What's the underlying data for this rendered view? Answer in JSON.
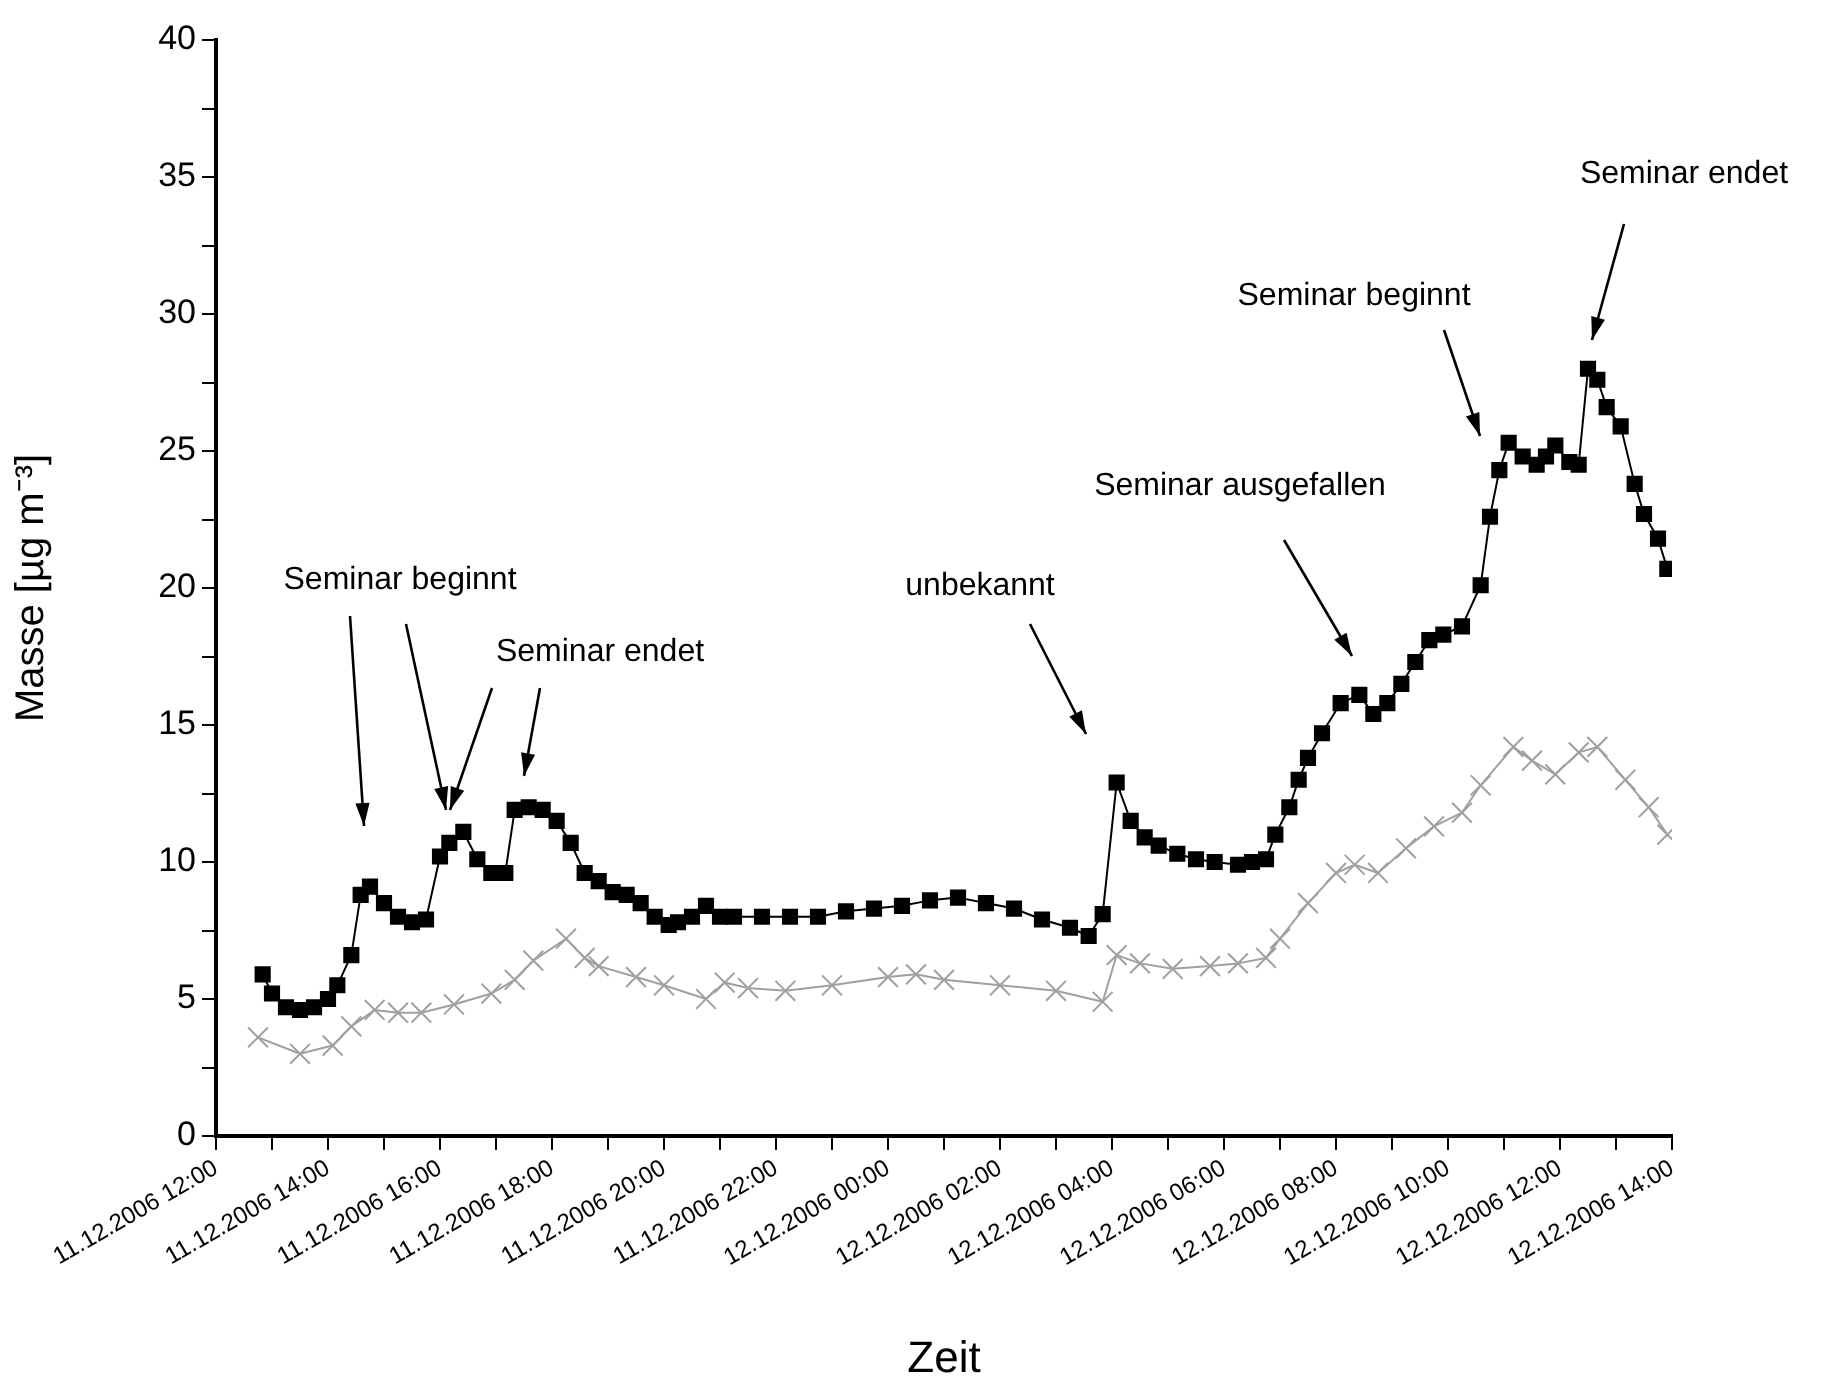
{
  "chart_data": {
    "type": "line",
    "xlabel": "Zeit",
    "ylabel": "Masse [µg m⁻³]",
    "xlim": [
      "2006-12-11T12:00",
      "2006-12-12T14:00"
    ],
    "xticks": [
      {
        "value": "2006-12-11T12:00",
        "label": "11.12.2006 12:00"
      },
      {
        "value": "2006-12-11T13:00",
        "label": null
      },
      {
        "value": "2006-12-11T14:00",
        "label": "11.12.2006 14:00"
      },
      {
        "value": "2006-12-11T15:00",
        "label": null
      },
      {
        "value": "2006-12-11T16:00",
        "label": "11.12.2006 16:00"
      },
      {
        "value": "2006-12-11T17:00",
        "label": null
      },
      {
        "value": "2006-12-11T18:00",
        "label": "11.12.2006 18:00"
      },
      {
        "value": "2006-12-11T19:00",
        "label": null
      },
      {
        "value": "2006-12-11T20:00",
        "label": "11.12.2006 20:00"
      },
      {
        "value": "2006-12-11T21:00",
        "label": null
      },
      {
        "value": "2006-12-11T22:00",
        "label": "11.12.2006 22:00"
      },
      {
        "value": "2006-12-11T23:00",
        "label": null
      },
      {
        "value": "2006-12-12T00:00",
        "label": "12.12.2006 00:00"
      },
      {
        "value": "2006-12-12T01:00",
        "label": null
      },
      {
        "value": "2006-12-12T02:00",
        "label": "12.12.2006 02:00"
      },
      {
        "value": "2006-12-12T03:00",
        "label": null
      },
      {
        "value": "2006-12-12T04:00",
        "label": "12.12.2006 04:00"
      },
      {
        "value": "2006-12-12T05:00",
        "label": null
      },
      {
        "value": "2006-12-12T06:00",
        "label": "12.12.2006 06:00"
      },
      {
        "value": "2006-12-12T07:00",
        "label": null
      },
      {
        "value": "2006-12-12T08:00",
        "label": "12.12.2006 08:00"
      },
      {
        "value": "2006-12-12T09:00",
        "label": null
      },
      {
        "value": "2006-12-12T10:00",
        "label": "12.12.2006 10:00"
      },
      {
        "value": "2006-12-12T11:00",
        "label": null
      },
      {
        "value": "2006-12-12T12:00",
        "label": "12.12.2006 12:00"
      },
      {
        "value": "2006-12-12T13:00",
        "label": null
      },
      {
        "value": "2006-12-12T14:00",
        "label": "12.12.2006 14:00"
      }
    ],
    "ylim": [
      0,
      40
    ],
    "yticks": [
      0,
      {
        "value": 2.5,
        "label": null
      },
      5,
      {
        "value": 7.5,
        "label": null
      },
      10,
      {
        "value": 12.5,
        "label": null
      },
      15,
      {
        "value": 17.5,
        "label": null
      },
      20,
      {
        "value": 22.5,
        "label": null
      },
      25,
      {
        "value": 27.5,
        "label": null
      },
      30,
      {
        "value": 32.5,
        "label": null
      },
      35,
      {
        "value": 37.5,
        "label": null
      },
      40
    ],
    "legend": false,
    "series": [
      {
        "color": "#000000",
        "marker": "square",
        "x": [
          "2006-12-11T12:50",
          "2006-12-11T13:00",
          "2006-12-11T13:15",
          "2006-12-11T13:30",
          "2006-12-11T13:45",
          "2006-12-11T14:00",
          "2006-12-11T14:10",
          "2006-12-11T14:25",
          "2006-12-11T14:35",
          "2006-12-11T14:45",
          "2006-12-11T15:00",
          "2006-12-11T15:15",
          "2006-12-11T15:30",
          "2006-12-11T15:45",
          "2006-12-11T16:00",
          "2006-12-11T16:10",
          "2006-12-11T16:25",
          "2006-12-11T16:40",
          "2006-12-11T16:55",
          "2006-12-11T17:10",
          "2006-12-11T17:20",
          "2006-12-11T17:35",
          "2006-12-11T17:50",
          "2006-12-11T18:05",
          "2006-12-11T18:20",
          "2006-12-11T18:35",
          "2006-12-11T18:50",
          "2006-12-11T19:05",
          "2006-12-11T19:20",
          "2006-12-11T19:35",
          "2006-12-11T19:50",
          "2006-12-11T20:05",
          "2006-12-11T20:15",
          "2006-12-11T20:30",
          "2006-12-11T20:45",
          "2006-12-11T21:00",
          "2006-12-11T21:15",
          "2006-12-11T21:45",
          "2006-12-11T22:15",
          "2006-12-11T22:45",
          "2006-12-11T23:15",
          "2006-12-11T23:45",
          "2006-12-12T00:15",
          "2006-12-12T00:45",
          "2006-12-12T01:15",
          "2006-12-12T01:45",
          "2006-12-12T02:15",
          "2006-12-12T02:45",
          "2006-12-12T03:15",
          "2006-12-12T03:35",
          "2006-12-12T03:50",
          "2006-12-12T04:05",
          "2006-12-12T04:20",
          "2006-12-12T04:35",
          "2006-12-12T04:50",
          "2006-12-12T05:10",
          "2006-12-12T05:30",
          "2006-12-12T05:50",
          "2006-12-12T06:15",
          "2006-12-12T06:30",
          "2006-12-12T06:45",
          "2006-12-12T06:55",
          "2006-12-12T07:10",
          "2006-12-12T07:20",
          "2006-12-12T07:30",
          "2006-12-12T07:45",
          "2006-12-12T08:05",
          "2006-12-12T08:25",
          "2006-12-12T08:40",
          "2006-12-12T08:55",
          "2006-12-12T09:10",
          "2006-12-12T09:25",
          "2006-12-12T09:40",
          "2006-12-12T09:55",
          "2006-12-12T10:15",
          "2006-12-12T10:35",
          "2006-12-12T10:45",
          "2006-12-12T10:55",
          "2006-12-12T11:05",
          "2006-12-12T11:20",
          "2006-12-12T11:35",
          "2006-12-12T11:45",
          "2006-12-12T11:55",
          "2006-12-12T12:10",
          "2006-12-12T12:20",
          "2006-12-12T12:30",
          "2006-12-12T12:40",
          "2006-12-12T12:50",
          "2006-12-12T13:05",
          "2006-12-12T13:20",
          "2006-12-12T13:30",
          "2006-12-12T13:45",
          "2006-12-12T13:55"
        ],
        "values": [
          5.9,
          5.2,
          4.7,
          4.6,
          4.7,
          5.0,
          5.5,
          6.6,
          8.8,
          9.1,
          8.5,
          8.0,
          7.8,
          7.9,
          10.2,
          10.7,
          11.1,
          10.1,
          9.6,
          9.6,
          11.9,
          12.0,
          11.9,
          11.5,
          10.7,
          9.6,
          9.3,
          8.9,
          8.8,
          8.5,
          8.0,
          7.7,
          7.8,
          8.0,
          8.4,
          8.0,
          8.0,
          8.0,
          8.0,
          8.0,
          8.2,
          8.3,
          8.4,
          8.6,
          8.7,
          8.5,
          8.3,
          7.9,
          7.6,
          7.3,
          8.1,
          12.9,
          11.5,
          10.9,
          10.6,
          10.3,
          10.1,
          10.0,
          9.9,
          10.0,
          10.1,
          11.0,
          12.0,
          13.0,
          13.8,
          14.7,
          15.8,
          16.1,
          15.4,
          15.8,
          16.5,
          17.3,
          18.1,
          18.3,
          18.6,
          20.1,
          22.6,
          24.3,
          25.3,
          24.8,
          24.5,
          24.8,
          25.2,
          24.6,
          24.5,
          28.0,
          27.6,
          26.6,
          25.9,
          23.8,
          22.7,
          21.8,
          20.7
        ]
      },
      {
        "color": "#a0a0a0",
        "marker": "cross",
        "x": [
          "2006-12-11T12:45",
          "2006-12-11T13:30",
          "2006-12-11T14:05",
          "2006-12-11T14:25",
          "2006-12-11T14:50",
          "2006-12-11T15:15",
          "2006-12-11T15:40",
          "2006-12-11T16:15",
          "2006-12-11T16:55",
          "2006-12-11T17:20",
          "2006-12-11T17:40",
          "2006-12-11T18:15",
          "2006-12-11T18:35",
          "2006-12-11T18:50",
          "2006-12-11T19:30",
          "2006-12-11T20:00",
          "2006-12-11T20:45",
          "2006-12-11T21:05",
          "2006-12-11T21:30",
          "2006-12-11T22:10",
          "2006-12-11T23:00",
          "2006-12-12T00:00",
          "2006-12-12T00:30",
          "2006-12-12T01:00",
          "2006-12-12T02:00",
          "2006-12-12T03:00",
          "2006-12-12T03:50",
          "2006-12-12T04:05",
          "2006-12-12T04:30",
          "2006-12-12T05:05",
          "2006-12-12T05:45",
          "2006-12-12T06:15",
          "2006-12-12T06:45",
          "2006-12-12T07:00",
          "2006-12-12T07:30",
          "2006-12-12T08:00",
          "2006-12-12T08:20",
          "2006-12-12T08:45",
          "2006-12-12T09:15",
          "2006-12-12T09:45",
          "2006-12-12T10:15",
          "2006-12-12T10:35",
          "2006-12-12T11:10",
          "2006-12-12T11:30",
          "2006-12-12T11:55",
          "2006-12-12T12:20",
          "2006-12-12T12:40",
          "2006-12-12T13:10",
          "2006-12-12T13:35",
          "2006-12-12T13:55"
        ],
        "values": [
          3.6,
          3.0,
          3.3,
          4.0,
          4.6,
          4.5,
          4.5,
          4.8,
          5.2,
          5.7,
          6.4,
          7.2,
          6.5,
          6.2,
          5.8,
          5.5,
          5.0,
          5.6,
          5.4,
          5.3,
          5.5,
          5.8,
          5.9,
          5.7,
          5.5,
          5.3,
          4.9,
          6.6,
          6.3,
          6.1,
          6.2,
          6.3,
          6.5,
          7.2,
          8.5,
          9.6,
          9.9,
          9.6,
          10.5,
          11.3,
          11.8,
          12.8,
          14.2,
          13.7,
          13.2,
          14.0,
          14.2,
          13.0,
          12.0,
          11.0
        ]
      }
    ],
    "annotations": [
      "Seminar beginnt",
      "Seminar endet",
      "unbekannt",
      "Seminar ausgefallen",
      "Seminar beginnt",
      "Seminar endet"
    ]
  }
}
